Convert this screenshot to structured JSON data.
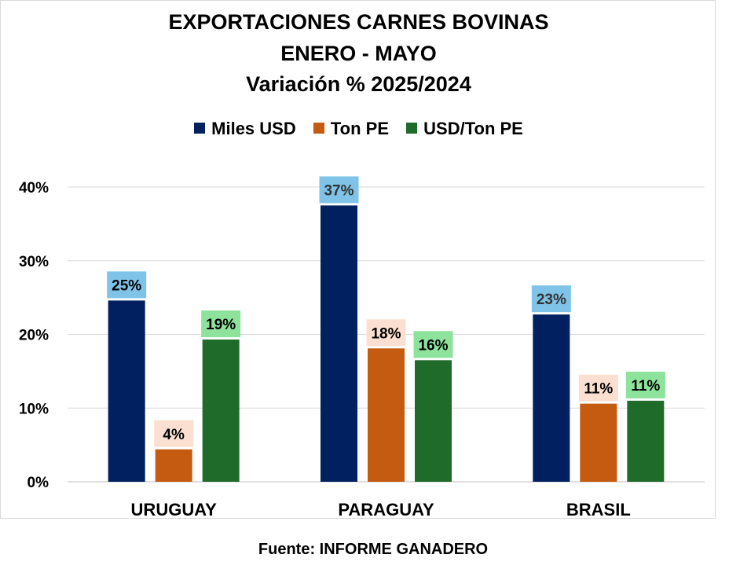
{
  "chart_data": {
    "type": "bar",
    "title": [
      "EXPORTACIONES CARNES BOVINAS",
      "ENERO - MAYO",
      "Variación % 2025/2024"
    ],
    "categories": [
      "URUGUAY",
      "PARAGUAY",
      "BRASIL"
    ],
    "series": [
      {
        "name": "Miles USD",
        "values": [
          24.6,
          37.5,
          22.7
        ],
        "labels": [
          "25%",
          "37%",
          "23%"
        ],
        "color": "#002060",
        "label_bg": "#7fc4e8"
      },
      {
        "name": "Ton PE",
        "values": [
          4.4,
          18.1,
          10.6
        ],
        "labels": [
          "4%",
          "18%",
          "11%"
        ],
        "color": "#c55a11",
        "label_bg": "#fbe0d1"
      },
      {
        "name": "USD/Ton PE",
        "values": [
          19.3,
          16.5,
          11.0
        ],
        "labels": [
          "19%",
          "16%",
          "11%"
        ],
        "color": "#1e6b2a",
        "label_bg": "#8de29c"
      }
    ],
    "yticks": [
      "0%",
      "10%",
      "20%",
      "30%",
      "40%"
    ],
    "ylim": [
      0,
      40
    ],
    "grid": true,
    "legend": "top-center",
    "xlabel": "",
    "ylabel": ""
  },
  "source": "Fuente: INFORME GANADERO"
}
